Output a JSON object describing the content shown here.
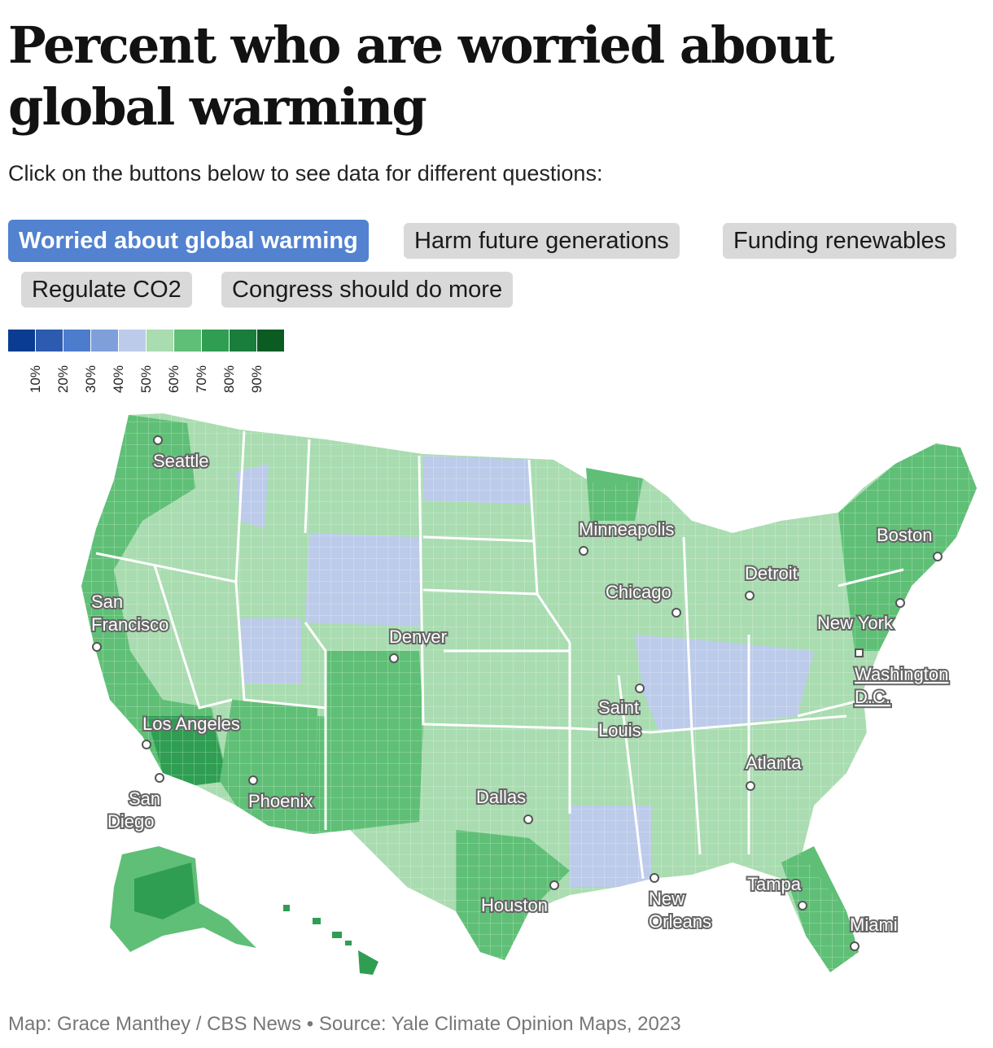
{
  "title": "Percent who are worried about global warming",
  "subtitle": "Click on the buttons below to see data for different questions:",
  "buttons": [
    {
      "label": "Worried about global warming",
      "active": true
    },
    {
      "label": "Harm future generations",
      "active": false
    },
    {
      "label": "Funding renewables",
      "active": false
    },
    {
      "label": "Regulate CO2",
      "active": false
    },
    {
      "label": "Congress should do more",
      "active": false
    }
  ],
  "legend": {
    "colors": [
      "#0a3d91",
      "#2c5bb0",
      "#4d7ccc",
      "#7f9fdb",
      "#bccbea",
      "#a9dcb0",
      "#5fbf76",
      "#2f9e52",
      "#1b7d3b",
      "#0a5c22"
    ],
    "labels": [
      "10%",
      "20%",
      "30%",
      "40%",
      "50%",
      "60%",
      "70%",
      "80%",
      "90%"
    ]
  },
  "map": {
    "colors": {
      "land_light": "#a9dcb0",
      "land_mid": "#5fbf76",
      "land_dark": "#2f9e52",
      "land_blue": "#bccbea",
      "border": "#ffffff"
    },
    "cities": [
      "Seattle",
      "San Francisco",
      "Los Angeles",
      "San Diego",
      "Phoenix",
      "Denver",
      "Dallas",
      "Houston",
      "Minneapolis",
      "Chicago",
      "Saint Louis",
      "New Orleans",
      "Atlanta",
      "Tampa",
      "Miami",
      "Detroit",
      "Boston",
      "New York",
      "Washington D.C."
    ]
  },
  "credit": "Map: Grace Manthey / CBS News • Source: Yale Climate Opinion Maps, 2023"
}
